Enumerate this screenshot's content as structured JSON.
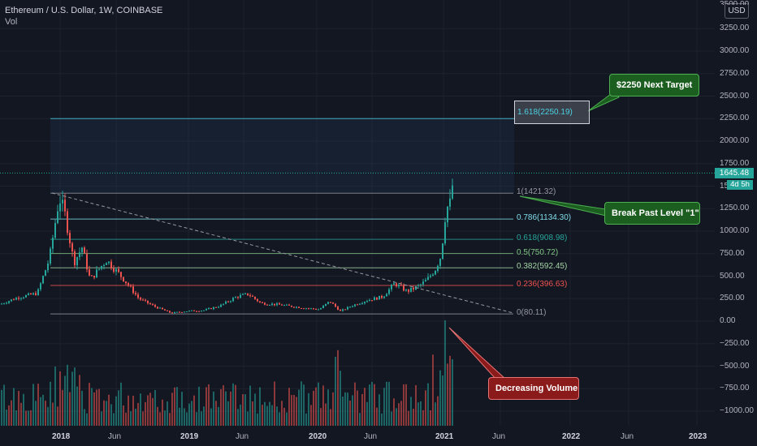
{
  "header": {
    "symbol_line": "Ethereum / U.S. Dollar, 1W, COINBASE",
    "indicator": "Vol"
  },
  "currency_badge": "USD",
  "price_scale": {
    "top_partial": "3500.00",
    "ticks": [
      "3250.00",
      "3000.00",
      "2750.00",
      "2500.00",
      "2250.00",
      "2000.00",
      "1750.00",
      "1500.00",
      "1250.00",
      "1000.00",
      "750.00",
      "500.00",
      "250.00",
      "0.00",
      "−250.00",
      "−500.00",
      "−750.00",
      "−1000.00"
    ]
  },
  "current_price": {
    "value": "1645.48",
    "countdown": "4d 5h"
  },
  "time_axis": [
    {
      "label": "2018",
      "year": true
    },
    {
      "label": "Jun",
      "year": false
    },
    {
      "label": "2019",
      "year": true
    },
    {
      "label": "Jun",
      "year": false
    },
    {
      "label": "2020",
      "year": true
    },
    {
      "label": "Jun",
      "year": false
    },
    {
      "label": "2021",
      "year": true
    },
    {
      "label": "Jun",
      "year": false
    },
    {
      "label": "2022",
      "year": true
    },
    {
      "label": "Jun",
      "year": false
    },
    {
      "label": "2023",
      "year": true
    }
  ],
  "fib_levels": [
    {
      "label": "1.618(2250.19)",
      "price": 2250.19,
      "color": "#4dd0e1"
    },
    {
      "label": "1(1421.32)",
      "price": 1421.32,
      "color": "#9598a1"
    },
    {
      "label": "0.786(1134.30)",
      "price": 1134.3,
      "color": "#80deea"
    },
    {
      "label": "0.618(908.98)",
      "price": 908.98,
      "color": "#26a69a"
    },
    {
      "label": "0.5(750.72)",
      "price": 750.72,
      "color": "#81c784"
    },
    {
      "label": "0.382(592.45)",
      "price": 592.45,
      "color": "#a5d6a7"
    },
    {
      "label": "0.236(396.63)",
      "price": 396.63,
      "color": "#ef5350"
    },
    {
      "label": "0(80.11)",
      "price": 80.11,
      "color": "#9598a1"
    }
  ],
  "annotations": {
    "target": "$2250 Next Target",
    "break": "Break Past Level \"1\"",
    "volume": "Decreasing Volume"
  },
  "colors": {
    "background": "#131722",
    "up_candle": "#26a69a",
    "down_candle": "#ef5350",
    "grid": "#1e222d"
  },
  "chart_data": {
    "type": "candlestick",
    "title": "Ethereum / U.S. Dollar, 1W, COINBASE",
    "ylim": [
      -1050,
      3500
    ],
    "weekly_close_approx": [
      {
        "date": "2017-06",
        "close": 300
      },
      {
        "date": "2017-09",
        "close": 300
      },
      {
        "date": "2017-12",
        "close": 700
      },
      {
        "date": "2018-01",
        "close": 1380
      },
      {
        "date": "2018-03",
        "close": 550
      },
      {
        "date": "2018-05",
        "close": 700
      },
      {
        "date": "2018-09",
        "close": 220
      },
      {
        "date": "2018-12",
        "close": 90
      },
      {
        "date": "2019-06",
        "close": 300
      },
      {
        "date": "2019-12",
        "close": 130
      },
      {
        "date": "2020-03",
        "close": 110
      },
      {
        "date": "2020-06",
        "close": 230
      },
      {
        "date": "2020-09",
        "close": 380
      },
      {
        "date": "2020-12",
        "close": 730
      },
      {
        "date": "2021-01",
        "close": 1380
      },
      {
        "date": "2021-02",
        "close": 1645
      }
    ]
  }
}
